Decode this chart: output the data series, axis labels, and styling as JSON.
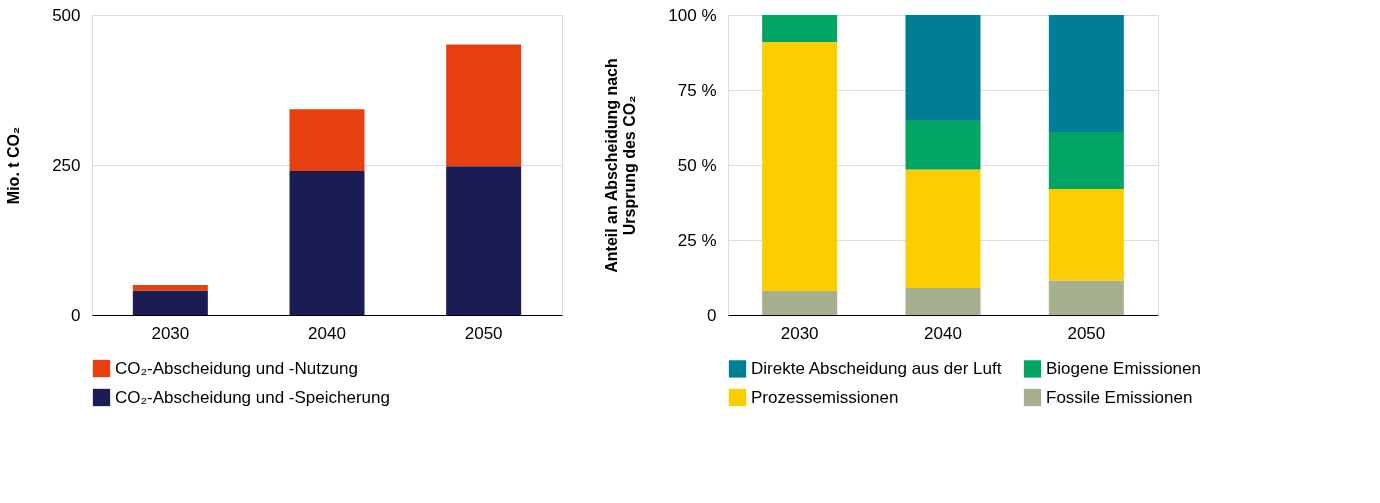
{
  "chart_data": [
    {
      "type": "bar",
      "stacked": true,
      "ylabel": "Mio. t CO₂",
      "categories": [
        "2030",
        "2040",
        "2050"
      ],
      "ylim": [
        0,
        500
      ],
      "yticks": [
        0,
        250,
        500
      ],
      "grid": "y",
      "legend": "bottom",
      "series": [
        {
          "name": "CO₂-Abscheidung und -Speicherung",
          "color": "#1c1c55",
          "values": [
            41,
            240,
            248
          ]
        },
        {
          "name": "CO₂-Abscheidung und -Nutzung",
          "color": "#e64011",
          "values": [
            9,
            103,
            203
          ]
        }
      ]
    },
    {
      "type": "bar",
      "stacked": true,
      "ylabel": "Anteil an Abscheidung nach Ursprung des CO₂",
      "categories": [
        "2030",
        "2040",
        "2050"
      ],
      "ylim": [
        0,
        100
      ],
      "yticks": [
        0,
        {
          "value": 25,
          "label": "25 %"
        },
        {
          "value": 50,
          "label": "50 %"
        },
        {
          "value": 75,
          "label": "75 %"
        },
        {
          "value": 100,
          "label": "100 %"
        }
      ],
      "grid": "y",
      "legend": "bottom",
      "series": [
        {
          "name": "Fossile Emissionen",
          "color": "#a5b08f",
          "values": [
            8,
            9,
            11.5
          ]
        },
        {
          "name": "Prozessemissionen",
          "color": "#fecd00",
          "values": [
            83,
            39.5,
            30.5
          ]
        },
        {
          "name": "Biogene Emissionen",
          "color": "#00a464",
          "values": [
            9,
            16.5,
            19
          ]
        },
        {
          "name": "Direkte Abscheidung aus der Luft",
          "color": "#007e95",
          "values": [
            0,
            35,
            39
          ]
        }
      ]
    }
  ]
}
